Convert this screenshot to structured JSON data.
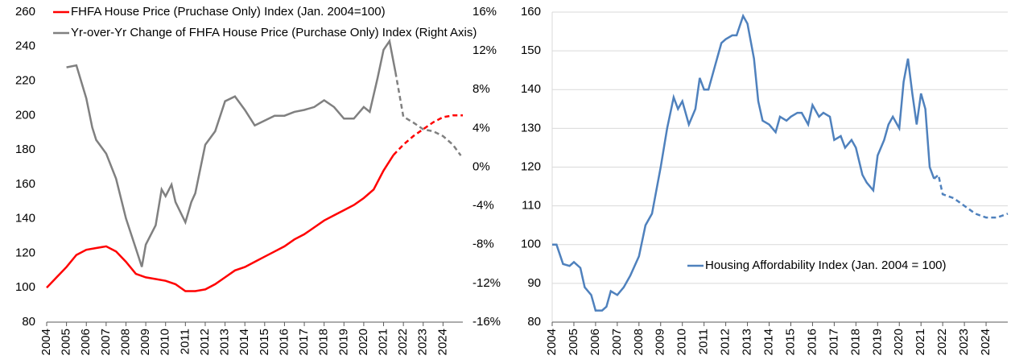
{
  "chart_data": [
    {
      "type": "line",
      "xlim": [
        2004,
        2025
      ],
      "xticks": [
        2004,
        2005,
        2006,
        2007,
        2008,
        2009,
        2010,
        2011,
        2012,
        2013,
        2014,
        2015,
        2016,
        2017,
        2018,
        2019,
        2020,
        2021,
        2022,
        2023,
        2024
      ],
      "ylim": [
        80,
        260
      ],
      "yticks": [
        80,
        100,
        120,
        140,
        160,
        180,
        200,
        220,
        240,
        260
      ],
      "y2lim": [
        -16,
        16
      ],
      "y2ticks": [
        {
          "value": -16,
          "label": "-16%"
        },
        {
          "value": -12,
          "label": "-12%"
        },
        {
          "value": -8,
          "label": "-8%"
        },
        {
          "value": -4,
          "label": "-4%"
        },
        {
          "value": 0,
          "label": "0%"
        },
        {
          "value": 4,
          "label": "4%"
        },
        {
          "value": 8,
          "label": "8%"
        },
        {
          "value": 12,
          "label": "12%"
        },
        {
          "value": 16,
          "label": "16%"
        }
      ],
      "grid": false,
      "legend": "upper left",
      "series": [
        {
          "name": "FHFA House Price (Pruchase Only) Index (Jan. 2004=100)",
          "color": "#ff0000",
          "dashed_from": 2021.5,
          "x": [
            2004,
            2004.5,
            2005,
            2005.5,
            2006,
            2006.5,
            2007,
            2007.5,
            2008,
            2008.5,
            2009,
            2009.5,
            2010,
            2010.5,
            2011,
            2011.5,
            2012,
            2012.5,
            2013,
            2013.5,
            2014,
            2014.5,
            2015,
            2015.5,
            2016,
            2016.5,
            2017,
            2017.5,
            2018,
            2018.5,
            2019,
            2019.5,
            2020,
            2020.5,
            2021,
            2021.5,
            2022,
            2022.5,
            2023,
            2023.5,
            2024,
            2024.5,
            2025
          ],
          "values": [
            100,
            106,
            112,
            119,
            122,
            123,
            124,
            121,
            115,
            108,
            106,
            105,
            104,
            102,
            98,
            98,
            99,
            102,
            106,
            110,
            112,
            115,
            118,
            121,
            124,
            128,
            131,
            135,
            139,
            142,
            145,
            148,
            152,
            157,
            168,
            177,
            183,
            188,
            192,
            196,
            199,
            200,
            200
          ]
        },
        {
          "name": "Yr-over-Yr Change of FHFA House Price (Purchase Only) Index (Right Axis)",
          "color": "#808080",
          "axis": "y2",
          "dashed_from": 2021.6,
          "x": [
            2005,
            2005.5,
            2006,
            2006.3,
            2006.5,
            2007,
            2007.5,
            2008,
            2008.5,
            2008.8,
            2009,
            2009.5,
            2009.8,
            2010,
            2010.3,
            2010.5,
            2011,
            2011.3,
            2011.5,
            2012,
            2012.5,
            2013,
            2013.5,
            2014,
            2014.5,
            2015,
            2015.5,
            2016,
            2016.5,
            2017,
            2017.5,
            2018,
            2018.5,
            2019,
            2019.5,
            2020,
            2020.3,
            2020.7,
            2021,
            2021.3,
            2021.6,
            2022,
            2022.5,
            2023,
            2023.5,
            2024,
            2024.5,
            2024.9
          ],
          "values": [
            10.3,
            10.5,
            7.1,
            4.1,
            2.8,
            1.4,
            -1.2,
            -5.3,
            -8.4,
            -10.3,
            -8,
            -6,
            -2.3,
            -3,
            -1.8,
            -3.6,
            -5.7,
            -3.6,
            -2.7,
            2.3,
            3.7,
            6.8,
            7.3,
            5.9,
            4.3,
            4.8,
            5.3,
            5.3,
            5.7,
            5.9,
            6.2,
            6.9,
            6.2,
            5,
            5,
            6.2,
            5.7,
            9.2,
            12.1,
            13,
            9.8,
            5.2,
            4.6,
            3.9,
            3.7,
            3.2,
            2.3,
            1.2
          ]
        }
      ]
    },
    {
      "type": "line",
      "xlim": [
        2004,
        2025
      ],
      "xticks": [
        2004,
        2005,
        2006,
        2007,
        2008,
        2009,
        2010,
        2011,
        2012,
        2013,
        2014,
        2015,
        2016,
        2017,
        2018,
        2019,
        2020,
        2021,
        2022,
        2023,
        2024
      ],
      "ylim": [
        80,
        160
      ],
      "yticks": [
        80,
        90,
        100,
        110,
        120,
        130,
        140,
        150,
        160
      ],
      "grid": true,
      "legend": "lower right",
      "series": [
        {
          "name": "Housing Affordability Index (Jan. 2004 = 100)",
          "color": "#4f81bd",
          "dashed_from": 2021.6,
          "x": [
            2004,
            2004.2,
            2004.5,
            2004.8,
            2005,
            2005.3,
            2005.5,
            2005.8,
            2006,
            2006.3,
            2006.5,
            2006.7,
            2007,
            2007.3,
            2007.6,
            2008,
            2008.3,
            2008.6,
            2009,
            2009.3,
            2009.6,
            2009.8,
            2010,
            2010.3,
            2010.6,
            2010.8,
            2011,
            2011.2,
            2011.5,
            2011.8,
            2012,
            2012.3,
            2012.5,
            2012.8,
            2013,
            2013.3,
            2013.5,
            2013.7,
            2014,
            2014.3,
            2014.5,
            2014.8,
            2015,
            2015.3,
            2015.5,
            2015.8,
            2016,
            2016.3,
            2016.5,
            2016.8,
            2017,
            2017.3,
            2017.5,
            2017.8,
            2018,
            2018.3,
            2018.5,
            2018.8,
            2019,
            2019.3,
            2019.5,
            2019.7,
            2020,
            2020.2,
            2020.4,
            2020.6,
            2020.8,
            2021,
            2021.2,
            2021.4,
            2021.6,
            2021.8,
            2022,
            2022.5,
            2023,
            2023.5,
            2024,
            2024.5,
            2025
          ],
          "values": [
            100,
            100,
            95,
            94.5,
            95.5,
            94,
            89,
            87,
            83,
            83,
            84,
            88,
            87,
            89,
            92,
            97,
            105,
            108,
            120,
            130,
            138,
            135,
            137,
            131,
            135,
            143,
            140,
            140,
            146,
            152,
            153,
            154,
            154,
            159,
            157,
            148,
            137,
            132,
            131,
            129,
            133,
            132,
            133,
            134,
            134,
            131,
            136,
            133,
            134,
            133,
            127,
            128,
            125,
            127,
            125,
            118,
            116,
            114,
            123,
            127,
            131,
            133,
            130,
            142,
            148,
            139,
            131,
            139,
            135,
            120,
            117,
            118,
            113,
            112,
            110,
            108,
            107,
            107,
            108
          ]
        }
      ]
    }
  ]
}
